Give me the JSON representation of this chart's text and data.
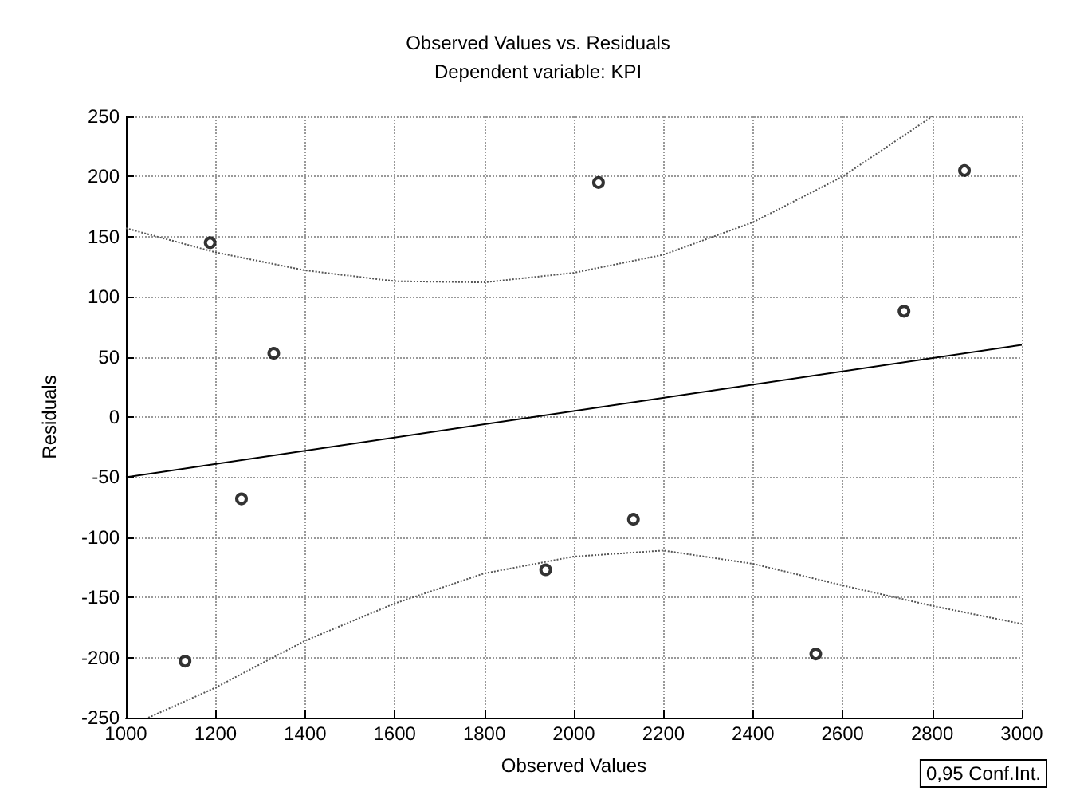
{
  "chart_data": {
    "type": "scatter",
    "title": "Observed Values vs. Residuals",
    "subtitle": "Dependent variable: KPI",
    "xlabel": "Observed Values",
    "ylabel": "Residuals",
    "annotations": [
      "0,95 Conf.Int."
    ],
    "xlim": [
      1000,
      3000
    ],
    "xticks": [
      1000,
      1200,
      1400,
      1600,
      1800,
      2000,
      2200,
      2400,
      2600,
      2800,
      3000
    ],
    "ylim": [
      -250,
      250
    ],
    "yticks": [
      -250,
      -200,
      -150,
      -100,
      -50,
      0,
      50,
      100,
      150,
      200,
      250
    ],
    "grid": true,
    "series": [
      {
        "color": "#000000",
        "marker": "circle",
        "x": [
          1132,
          1188,
          1258,
          1330,
          1937,
          2055,
          2133,
          2540,
          2737,
          2872
        ],
        "values": [
          -203,
          145,
          -68,
          53,
          -127,
          195,
          -85,
          -197,
          88,
          205
        ]
      },
      {
        "type": "line",
        "color": "#000000",
        "line_style": "solid",
        "x": [
          1000,
          3000
        ],
        "values": [
          -50,
          60
        ]
      },
      {
        "type": "line",
        "color": "#555555",
        "line_style": "dotted",
        "x": [
          1000,
          1200,
          1400,
          1600,
          1800,
          2000,
          2200,
          2400,
          2600,
          2800
        ],
        "values": [
          157,
          137,
          122,
          113,
          112,
          120,
          135,
          162,
          200,
          250
        ]
      },
      {
        "type": "line",
        "color": "#555555",
        "line_style": "dotted",
        "x": [
          1050,
          1200,
          1400,
          1600,
          1800,
          2000,
          2200,
          2400,
          2600,
          2800,
          3000
        ],
        "values": [
          -250,
          -225,
          -186,
          -155,
          -130,
          -116,
          -111,
          -122,
          -140,
          -157,
          -172
        ]
      }
    ]
  }
}
